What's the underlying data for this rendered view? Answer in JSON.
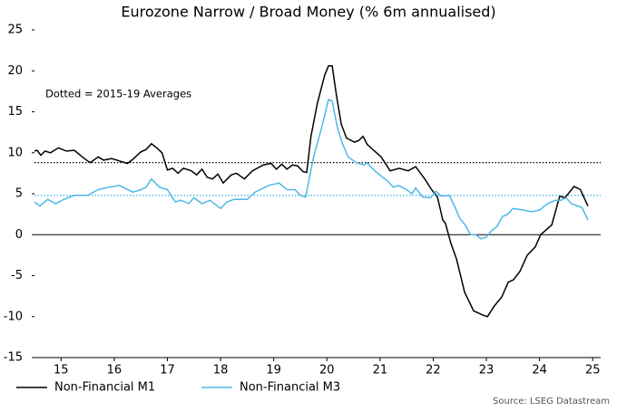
{
  "chart_data": {
    "type": "line",
    "title": "Eurozone Narrow / Broad Money (% 6m annualised)",
    "annotation": "Dotted = 2015-19 Averages",
    "source": "Source: LSEG Datastream",
    "xlim": [
      2015,
      2025.65
    ],
    "xticks": [
      {
        "value": 2015.5,
        "label": "15"
      },
      {
        "value": 2016.5,
        "label": "16"
      },
      {
        "value": 2017.5,
        "label": "17"
      },
      {
        "value": 2018.5,
        "label": "18"
      },
      {
        "value": 2019.5,
        "label": "19"
      },
      {
        "value": 2020.5,
        "label": "20"
      },
      {
        "value": 2021.5,
        "label": "21"
      },
      {
        "value": 2022.5,
        "label": "22"
      },
      {
        "value": 2023.5,
        "label": "23"
      },
      {
        "value": 2024.5,
        "label": "24"
      },
      {
        "value": 2025.5,
        "label": "25"
      }
    ],
    "ylim": [
      -15,
      25
    ],
    "yticks": [
      -15,
      -10,
      -5,
      0,
      5,
      10,
      15,
      20,
      25
    ],
    "zero_line": 0,
    "series": [
      {
        "name": "Non-Financial M1",
        "color": "#000000",
        "average": 8.8,
        "x": [
          2015.0,
          2015.05,
          2015.12,
          2015.2,
          2015.3,
          2015.45,
          2015.6,
          2015.75,
          2015.9,
          2016.0,
          2016.05,
          2016.2,
          2016.3,
          2016.45,
          2016.6,
          2016.75,
          2016.85,
          2017.0,
          2017.1,
          2017.2,
          2017.3,
          2017.4,
          2017.5,
          2017.6,
          2017.7,
          2017.8,
          2017.95,
          2018.05,
          2018.15,
          2018.25,
          2018.35,
          2018.45,
          2018.55,
          2018.7,
          2018.8,
          2018.95,
          2019.1,
          2019.3,
          2019.45,
          2019.55,
          2019.65,
          2019.75,
          2019.85,
          2019.95,
          2020.05,
          2020.12,
          2020.2,
          2020.32,
          2020.46,
          2020.53,
          2020.6,
          2020.68,
          2020.77,
          2020.87,
          2021.02,
          2021.1,
          2021.18,
          2021.26,
          2021.38,
          2021.52,
          2021.69,
          2021.86,
          2022.03,
          2022.17,
          2022.34,
          2022.47,
          2022.58,
          2022.68,
          2022.73,
          2022.83,
          2022.94,
          2023.09,
          2023.26,
          2023.43,
          2023.52,
          2023.65,
          2023.79,
          2023.91,
          2024.01,
          2024.13,
          2024.27,
          2024.42,
          2024.52,
          2024.73,
          2024.88,
          2024.98,
          2025.15,
          2025.27,
          2025.41
        ],
        "values": [
          10.2,
          10.3,
          9.7,
          10.2,
          10.0,
          10.6,
          10.2,
          10.3,
          9.5,
          9.0,
          8.8,
          9.5,
          9.1,
          9.3,
          9.0,
          8.7,
          9.2,
          10.1,
          10.4,
          11.1,
          10.6,
          10.0,
          7.9,
          8.1,
          7.5,
          8.1,
          7.8,
          7.3,
          8.0,
          7.0,
          6.8,
          7.4,
          6.3,
          7.3,
          7.5,
          6.8,
          7.8,
          8.5,
          8.7,
          8.0,
          8.6,
          8.0,
          8.5,
          8.4,
          7.7,
          7.6,
          12.0,
          16.0,
          19.5,
          20.6,
          20.6,
          17.0,
          13.5,
          11.8,
          11.3,
          11.5,
          12.0,
          11.0,
          10.3,
          9.5,
          7.8,
          8.1,
          7.8,
          8.3,
          6.8,
          5.5,
          4.6,
          1.8,
          1.4,
          -1.0,
          -3.0,
          -7.0,
          -9.3,
          -9.8,
          -10.0,
          -8.7,
          -7.6,
          -5.8,
          -5.5,
          -4.5,
          -2.5,
          -1.5,
          0.0,
          1.2,
          4.7,
          4.5,
          5.9,
          5.5,
          3.5
        ]
      },
      {
        "name": "Non-Financial M3",
        "color": "#4db8e8",
        "average": 4.8,
        "x": [
          2015.0,
          2015.1,
          2015.25,
          2015.4,
          2015.55,
          2015.75,
          2016.0,
          2016.2,
          2016.4,
          2016.6,
          2016.85,
          2017.0,
          2017.1,
          2017.2,
          2017.35,
          2017.5,
          2017.65,
          2017.75,
          2017.9,
          2018.0,
          2018.15,
          2018.3,
          2018.5,
          2018.62,
          2018.75,
          2019.0,
          2019.15,
          2019.4,
          2019.6,
          2019.75,
          2019.9,
          2020.0,
          2020.1,
          2020.25,
          2020.4,
          2020.53,
          2020.6,
          2020.7,
          2020.8,
          2020.9,
          2021.05,
          2021.2,
          2021.25,
          2021.4,
          2021.55,
          2021.65,
          2021.75,
          2021.85,
          2022.0,
          2022.1,
          2022.17,
          2022.3,
          2022.45,
          2022.55,
          2022.65,
          2022.8,
          2022.9,
          2023.0,
          2023.1,
          2023.2,
          2023.3,
          2023.4,
          2023.5,
          2023.6,
          2023.7,
          2023.8,
          2023.9,
          2024.0,
          2024.2,
          2024.35,
          2024.5,
          2024.65,
          2024.8,
          2024.9,
          2025.0,
          2025.1,
          2025.3,
          2025.41
        ],
        "values": [
          4.0,
          3.5,
          4.3,
          3.8,
          4.3,
          4.8,
          4.8,
          5.5,
          5.8,
          6.0,
          5.2,
          5.5,
          5.8,
          6.8,
          5.8,
          5.5,
          4.0,
          4.2,
          3.8,
          4.5,
          3.8,
          4.2,
          3.2,
          4.0,
          4.3,
          4.3,
          5.2,
          6.0,
          6.3,
          5.5,
          5.5,
          4.8,
          4.6,
          9.5,
          13.0,
          16.5,
          16.3,
          13.0,
          11.0,
          9.5,
          8.8,
          8.5,
          8.8,
          7.8,
          7.0,
          6.5,
          5.8,
          6.0,
          5.5,
          5.0,
          5.7,
          4.6,
          4.5,
          5.3,
          4.7,
          4.8,
          3.5,
          2.0,
          1.2,
          0.0,
          0.0,
          -0.5,
          -0.3,
          0.5,
          1.0,
          2.2,
          2.5,
          3.2,
          3.0,
          2.8,
          3.0,
          3.8,
          4.2,
          4.2,
          4.5,
          3.8,
          3.3,
          1.8
        ]
      }
    ],
    "legend": "bottom"
  }
}
